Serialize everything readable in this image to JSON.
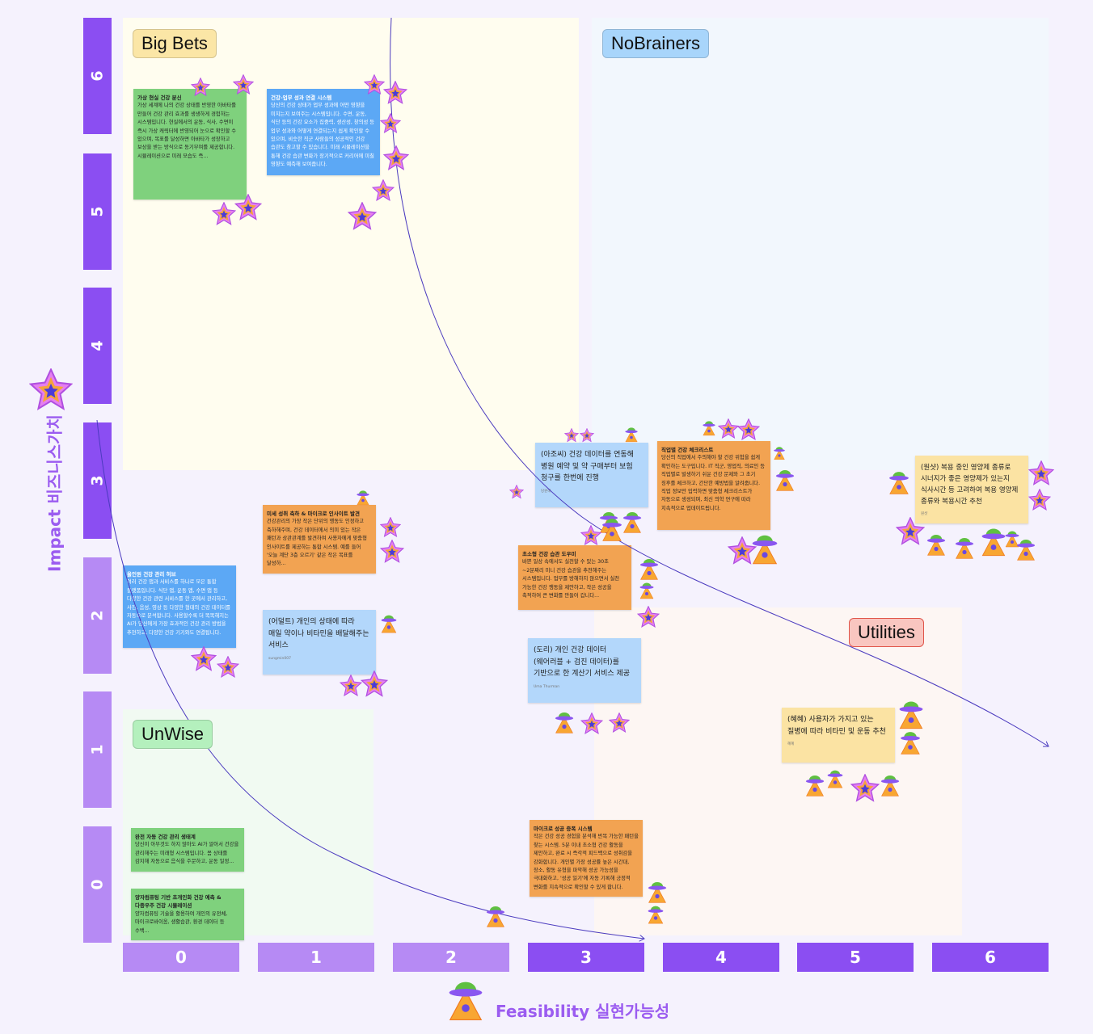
{
  "quadrants": {
    "big_bets": "Big Bets",
    "no_brainers": "NoBrainers",
    "unwise": "UnWise",
    "utilities": "Utilities"
  },
  "y_axis": {
    "title": "Impact 비즈니스가치",
    "ticks": [
      "6",
      "5",
      "4",
      "3",
      "2",
      "1",
      "0"
    ],
    "icon": "star-icon"
  },
  "x_axis": {
    "title": "Feasibility 실현가능성",
    "ticks": [
      "0",
      "1",
      "2",
      "3",
      "4",
      "5",
      "6"
    ],
    "icon": "ufo-icon"
  },
  "colors": {
    "axis_dark": "#8b4ef2",
    "axis_light": "#b68af4",
    "axis_title": "#9b5cf0",
    "connector": "#4b3bbf"
  },
  "notes": [
    {
      "title": "가상 현실 건강 분신",
      "body": "가상 세계에 나의 건강 상태를 반영한 아바타를 만들어 건강 관리 효과를 생생하게 경험하는 시스템입니다. 현실에서의 운동, 식사, 수면이 즉시 가상 캐릭터에 반영되어 눈으로 확인할 수 있으며, 목표를 달성하면 아바타가 성장하고 보상을 받는 방식으로 동기부여를 제공합니다. 시뮬레이션으로 미래 모습도 즉..."
    },
    {
      "title": "건강-업무 성과 연결 시스템",
      "body": "당신의 건강 상태가 업무 성과에 어떤 영향을 미치는지 보여주는 시스템입니다. 수면, 운동, 식단 등의 건강 요소가 집중력, 생산성, 창의성 등 업무 성과와 어떻게 연결되는지 쉽게 확인할 수 있으며, 비슷한 직군 사람들의 성공적인 건강 습관도 참고할 수 있습니다. 미래 시뮬레이션을 통해 건강 습관 변화가 장기적으로 커리어에 미칠 영향도 예측해 보여줍니다."
    },
    {
      "title": "올인원 건강 관리 허브",
      "body": "여러 건강 앱과 서비스를 하나로 모은 통합 플랫폼입니다. 식단 앱, 운동 앱, 수면 앱 등 다양한 건강 관련 서비스를 한 곳에서 관리하고, 사진, 음성, 영상 등 다양한 형태의 건강 데이터를 자동으로 분석합니다. 사용할수록 더 똑똑해지는 AI가 당신에게 가장 효과적인 건강 관리 방법을 추천하고, 다양한 건강 기기와도 연결됩니다."
    },
    {
      "title": "미세 성취 축하 & 마이크로 인사이트 발견",
      "body": "건강관리의 가장 작은 단위의 행동도 인정하고 축하해주며, 건강 데이터에서 의미 있는 작은 패턴과 상관관계를 발견하여 사용자에게 맞춤형 인사이트를 제공하는 통합 시스템. 예를 들어 '오늘 계단 3층 오르기' 같은 작은 목표를 달성하..."
    },
    {
      "body": "(어덜트) 개인의 상태에 따라 매일 약이나 비타민을 배달해주는 서비스",
      "author": "sungmin007"
    },
    {
      "body": "(아조씨) 건강 데이터를 연동해 병원 예약 및 약 구매부터 보험 청구를 한번에 진행",
      "author": "당원해"
    },
    {
      "title": "직업별 건강 체크리스트",
      "body": "당신의 직업에서 주의해야 할 건강 위험을 쉽게 확인하는 도구입니다. IT 직군, 영업직, 의료인 등 직업별로 발생하기 쉬운 건강 문제와 그 초기 징후를 체크하고, 간단한 예방법을 알려줍니다. 직업 정보만 입력하면 맞춤형 체크리스트가 자동으로 생성되며, 최신 의학 연구에 따라 지속적으로 업데이트됩니다."
    },
    {
      "title": "초소형 건강 습관 도우미",
      "body": "바쁜 일상 속에서도 실천할 수 있는 30초~2분짜리 미니 건강 습관을 추천해주는 시스템입니다. 업무를 방해하지 않으면서 실천 가능한 건강 행동을 제안하고, 작은 성공을 축적하여 큰 변화를 만들어 갑니다..."
    },
    {
      "body": "(도리) 개인 건강 데이터 (웨어러블 + 검진 데이터)를 기반으로 한 계산기 서비스 제공",
      "author": "Uma Thurman"
    },
    {
      "body": "(원샷) 복용 중인 영양제 종류로 시너지가 좋은 영양제가 있는지 식사시간 등 고려하여 복용 영양제 종류와 복용시간 추천",
      "author": "원샷"
    },
    {
      "body": "(혜혜) 사용자가 가지고 있는 질병에 따라 비타민 및 운동 추천",
      "author": "혜혜"
    },
    {
      "title": "완전 자동 건강 관리 생태계",
      "body": "당신이 아무것도 하지 않아도 AI가 알아서 건강을 관리해주는 미래형 시스템입니다. 몸 상태를 감지해 자동으로 음식을 주문하고, 운동 일정..."
    },
    {
      "title": "양자컴퓨팅 기반 초개인화 건강 예측 & 다중우주 건강 시뮬레이션",
      "body": "양자컴퓨팅 기술을 활용하여 개인의 유전체, 마이크로바이옴, 생활습관, 환경 데이터 등 수백..."
    },
    {
      "title": "마이크로 성공 증폭 시스템",
      "body": "작은 건강 성공 경험을 분석해 반복 가능한 패턴을 찾는 시스템. 5분 이내 초소형 건강 활동을 제안하고, 완료 시 즉각적 피드백으로 성취감을 강화합니다. 개인별 가장 성공률 높은 시간대, 장소, 활동 유형을 파악해 성공 가능성을 극대화하고, '성공 일기'에 자동 기록해 긍정적 변화를 지속적으로 확인할 수 있게 합니다."
    }
  ]
}
